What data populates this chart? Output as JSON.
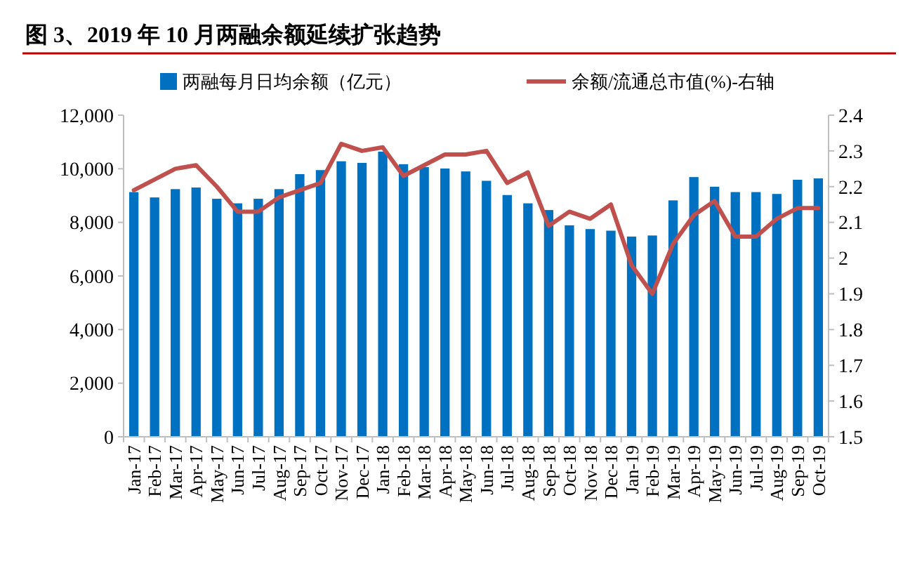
{
  "chart_data": {
    "type": "bar",
    "title": "图 3、2019 年 10 月两融余额延续扩张趋势",
    "categories": [
      "Jan-17",
      "Feb-17",
      "Mar-17",
      "Apr-17",
      "May-17",
      "Jun-17",
      "Jul-17",
      "Aug-17",
      "Sep-17",
      "Oct-17",
      "Nov-17",
      "Dec-17",
      "Jan-18",
      "Feb-18",
      "Mar-18",
      "Apr-18",
      "May-18",
      "Jun-18",
      "Jul-18",
      "Aug-18",
      "Sep-18",
      "Oct-18",
      "Nov-18",
      "Dec-18",
      "Jan-19",
      "Feb-19",
      "Mar-19",
      "Apr-19",
      "May-19",
      "Jun-19",
      "Jul-19",
      "Aug-19",
      "Sep-19",
      "Oct-19"
    ],
    "series": [
      {
        "name": "两融每月日均余额（亿元）",
        "color": "#0070c0",
        "values": [
          9130,
          8930,
          9240,
          9300,
          8880,
          8710,
          8880,
          9240,
          9800,
          9950,
          10280,
          10220,
          10640,
          10170,
          10060,
          10010,
          9900,
          9550,
          9020,
          8710,
          8460,
          7890,
          7750,
          7690,
          7470,
          7510,
          8820,
          9690,
          9330,
          9130,
          9130,
          9060,
          9590,
          9640
        ]
      },
      {
        "name": "余额/流通总市值(%)-右轴",
        "type": "line",
        "axis": "y2",
        "color": "#c0504d",
        "values": [
          2.19,
          2.22,
          2.25,
          2.26,
          2.2,
          2.13,
          2.13,
          2.17,
          2.19,
          2.21,
          2.32,
          2.3,
          2.31,
          2.23,
          2.26,
          2.29,
          2.29,
          2.3,
          2.21,
          2.24,
          2.09,
          2.13,
          2.11,
          2.15,
          1.98,
          1.9,
          2.04,
          2.12,
          2.16,
          2.06,
          2.06,
          2.11,
          2.14,
          2.14
        ]
      }
    ],
    "ylim": [
      0,
      12000
    ],
    "yticks": [
      {
        "value": 0,
        "label": "0"
      },
      {
        "value": 2000,
        "label": "2,000"
      },
      {
        "value": 4000,
        "label": "4,000"
      },
      {
        "value": 6000,
        "label": "6,000"
      },
      {
        "value": 8000,
        "label": "8,000"
      },
      {
        "value": 10000,
        "label": "10,000"
      },
      {
        "value": 12000,
        "label": "12,000"
      }
    ],
    "y2lim": [
      1.5,
      2.4
    ],
    "y2ticks": [
      1.5,
      1.6,
      1.7,
      1.8,
      1.9,
      2,
      2.1,
      2.2,
      2.3,
      2.4
    ],
    "grid": false,
    "legend": "top",
    "marker": "none",
    "line_style": "solid"
  }
}
